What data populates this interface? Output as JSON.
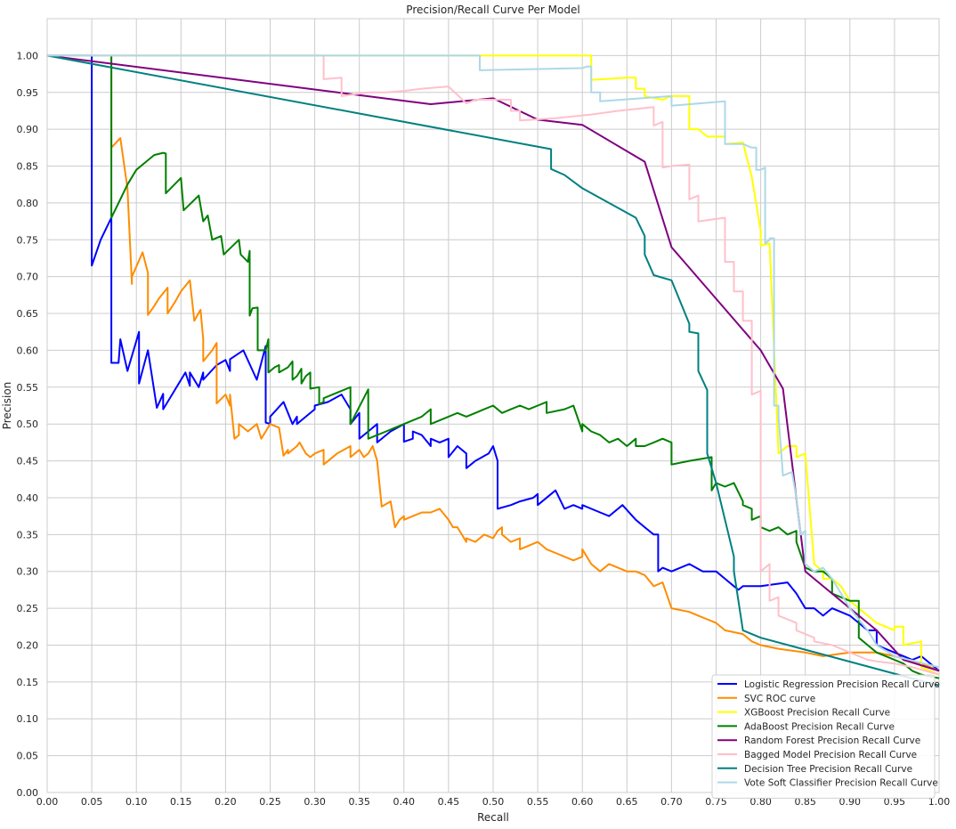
{
  "chart_data": {
    "type": "line",
    "title": "Precision/Recall Curve Per Model",
    "xlabel": "Recall",
    "ylabel": "Precision",
    "xlim": [
      0,
      1
    ],
    "ylim": [
      0,
      1.05
    ],
    "grid": true,
    "legend_position": "lower-right",
    "x_ticks": [
      "0.00",
      "0.05",
      "0.10",
      "0.15",
      "0.20",
      "0.25",
      "0.30",
      "0.35",
      "0.40",
      "0.45",
      "0.50",
      "0.55",
      "0.60",
      "0.65",
      "0.70",
      "0.75",
      "0.80",
      "0.85",
      "0.90",
      "0.95",
      "1.00"
    ],
    "y_ticks": [
      "0.00",
      "0.05",
      "0.10",
      "0.15",
      "0.20",
      "0.25",
      "0.30",
      "0.35",
      "0.40",
      "0.45",
      "0.50",
      "0.55",
      "0.60",
      "0.65",
      "0.70",
      "0.75",
      "0.80",
      "0.85",
      "0.90",
      "0.95",
      "1.00"
    ],
    "series": [
      {
        "name": "Logistic Regression Precision Recall Curve",
        "color": "#0000ff",
        "x": [
          0.0,
          0.05,
          0.05,
          0.06,
          0.072,
          0.072,
          0.08,
          0.082,
          0.09,
          0.103,
          0.103,
          0.113,
          0.123,
          0.123,
          0.13,
          0.13,
          0.14,
          0.155,
          0.16,
          0.16,
          0.17,
          0.175,
          0.175,
          0.19,
          0.2,
          0.205,
          0.205,
          0.22,
          0.235,
          0.245,
          0.245,
          0.25,
          0.25,
          0.265,
          0.275,
          0.28,
          0.28,
          0.29,
          0.3,
          0.3,
          0.315,
          0.33,
          0.34,
          0.34,
          0.35,
          0.35,
          0.36,
          0.37,
          0.37,
          0.385,
          0.4,
          0.4,
          0.41,
          0.41,
          0.42,
          0.43,
          0.43,
          0.44,
          0.45,
          0.45,
          0.46,
          0.47,
          0.47,
          0.48,
          0.495,
          0.5,
          0.505,
          0.505,
          0.52,
          0.53,
          0.545,
          0.55,
          0.55,
          0.57,
          0.58,
          0.59,
          0.6,
          0.6,
          0.62,
          0.63,
          0.645,
          0.66,
          0.67,
          0.68,
          0.685,
          0.685,
          0.69,
          0.7,
          0.72,
          0.735,
          0.75,
          0.76,
          0.77,
          0.775,
          0.78,
          0.8,
          0.83,
          0.84,
          0.85,
          0.86,
          0.87,
          0.88,
          0.9,
          0.92,
          0.93,
          0.93,
          0.95,
          0.97,
          0.98,
          1.0
        ],
        "y": [
          1.0,
          1.0,
          0.715,
          0.75,
          0.78,
          0.583,
          0.583,
          0.615,
          0.572,
          0.625,
          0.555,
          0.6,
          0.522,
          0.522,
          0.541,
          0.52,
          0.54,
          0.57,
          0.552,
          0.57,
          0.55,
          0.57,
          0.56,
          0.58,
          0.587,
          0.572,
          0.588,
          0.6,
          0.56,
          0.606,
          0.502,
          0.5,
          0.51,
          0.53,
          0.5,
          0.51,
          0.5,
          0.51,
          0.52,
          0.525,
          0.53,
          0.54,
          0.52,
          0.5,
          0.515,
          0.48,
          0.49,
          0.5,
          0.475,
          0.49,
          0.5,
          0.476,
          0.48,
          0.49,
          0.485,
          0.47,
          0.48,
          0.475,
          0.48,
          0.455,
          0.47,
          0.46,
          0.44,
          0.45,
          0.46,
          0.47,
          0.45,
          0.385,
          0.39,
          0.395,
          0.4,
          0.405,
          0.39,
          0.41,
          0.385,
          0.39,
          0.385,
          0.39,
          0.38,
          0.375,
          0.39,
          0.37,
          0.36,
          0.35,
          0.35,
          0.3,
          0.305,
          0.3,
          0.31,
          0.3,
          0.3,
          0.29,
          0.28,
          0.275,
          0.28,
          0.28,
          0.285,
          0.27,
          0.25,
          0.25,
          0.24,
          0.25,
          0.24,
          0.22,
          0.22,
          0.2,
          0.19,
          0.18,
          0.185,
          0.165
        ]
      },
      {
        "name": "SVC ROC curve",
        "color": "#ff8c00",
        "x": [
          0.072,
          0.072,
          0.082,
          0.09,
          0.095,
          0.095,
          0.107,
          0.113,
          0.113,
          0.12,
          0.125,
          0.135,
          0.135,
          0.143,
          0.15,
          0.16,
          0.165,
          0.165,
          0.172,
          0.175,
          0.175,
          0.185,
          0.19,
          0.19,
          0.2,
          0.205,
          0.205,
          0.21,
          0.215,
          0.215,
          0.225,
          0.235,
          0.24,
          0.245,
          0.25,
          0.26,
          0.265,
          0.27,
          0.27,
          0.28,
          0.283,
          0.29,
          0.295,
          0.3,
          0.31,
          0.31,
          0.325,
          0.34,
          0.34,
          0.35,
          0.355,
          0.36,
          0.365,
          0.37,
          0.375,
          0.385,
          0.39,
          0.395,
          0.4,
          0.4,
          0.41,
          0.42,
          0.43,
          0.44,
          0.45,
          0.455,
          0.46,
          0.47,
          0.47,
          0.48,
          0.49,
          0.5,
          0.505,
          0.51,
          0.51,
          0.52,
          0.53,
          0.53,
          0.55,
          0.56,
          0.57,
          0.58,
          0.59,
          0.6,
          0.6,
          0.61,
          0.62,
          0.63,
          0.64,
          0.65,
          0.66,
          0.67,
          0.68,
          0.69,
          0.7,
          0.72,
          0.73,
          0.74,
          0.75,
          0.76,
          0.78,
          0.79,
          0.8,
          0.82,
          0.85,
          0.87,
          0.9,
          0.93,
          0.95,
          0.98,
          1.0
        ],
        "y": [
          1.0,
          0.875,
          0.888,
          0.82,
          0.69,
          0.7,
          0.733,
          0.705,
          0.648,
          0.66,
          0.67,
          0.685,
          0.65,
          0.665,
          0.68,
          0.695,
          0.64,
          0.64,
          0.655,
          0.615,
          0.585,
          0.6,
          0.61,
          0.528,
          0.54,
          0.525,
          0.54,
          0.48,
          0.485,
          0.5,
          0.49,
          0.5,
          0.48,
          0.49,
          0.5,
          0.495,
          0.457,
          0.465,
          0.46,
          0.47,
          0.475,
          0.46,
          0.455,
          0.46,
          0.465,
          0.445,
          0.46,
          0.47,
          0.455,
          0.465,
          0.455,
          0.46,
          0.47,
          0.45,
          0.388,
          0.395,
          0.36,
          0.37,
          0.375,
          0.37,
          0.375,
          0.38,
          0.38,
          0.385,
          0.37,
          0.36,
          0.36,
          0.34,
          0.345,
          0.34,
          0.35,
          0.345,
          0.355,
          0.36,
          0.35,
          0.34,
          0.345,
          0.33,
          0.34,
          0.33,
          0.325,
          0.32,
          0.315,
          0.32,
          0.33,
          0.31,
          0.3,
          0.31,
          0.305,
          0.3,
          0.3,
          0.295,
          0.28,
          0.285,
          0.25,
          0.245,
          0.24,
          0.235,
          0.23,
          0.22,
          0.215,
          0.205,
          0.2,
          0.195,
          0.19,
          0.185,
          0.19,
          0.19,
          0.185,
          0.175,
          0.165
        ]
      },
      {
        "name": "XGBoost Precision Recall Curve",
        "color": "#ffff00",
        "x": [
          0.0,
          0.6,
          0.61,
          0.61,
          0.65,
          0.66,
          0.66,
          0.67,
          0.67,
          0.69,
          0.7,
          0.72,
          0.72,
          0.73,
          0.74,
          0.74,
          0.76,
          0.76,
          0.78,
          0.79,
          0.79,
          0.8,
          0.8,
          0.81,
          0.82,
          0.83,
          0.84,
          0.84,
          0.85,
          0.86,
          0.87,
          0.87,
          0.88,
          0.89,
          0.9,
          0.91,
          0.92,
          0.93,
          0.95,
          0.95,
          0.96,
          0.96,
          0.98,
          0.98,
          1.0
        ],
        "y": [
          1.0,
          1.0,
          1.0,
          0.967,
          0.97,
          0.97,
          0.955,
          0.955,
          0.945,
          0.94,
          0.945,
          0.945,
          0.9,
          0.9,
          0.89,
          0.89,
          0.89,
          0.88,
          0.882,
          0.835,
          0.835,
          0.762,
          0.742,
          0.745,
          0.46,
          0.47,
          0.47,
          0.455,
          0.46,
          0.31,
          0.3,
          0.29,
          0.29,
          0.28,
          0.26,
          0.25,
          0.24,
          0.23,
          0.22,
          0.225,
          0.225,
          0.2,
          0.205,
          0.17,
          0.16
        ]
      },
      {
        "name": "AdaBoost Precision Recall Curve",
        "color": "#008000",
        "x": [
          0.072,
          0.072,
          0.08,
          0.09,
          0.1,
          0.11,
          0.12,
          0.13,
          0.133,
          0.133,
          0.15,
          0.153,
          0.153,
          0.17,
          0.175,
          0.175,
          0.18,
          0.185,
          0.185,
          0.195,
          0.198,
          0.198,
          0.215,
          0.217,
          0.217,
          0.225,
          0.227,
          0.227,
          0.23,
          0.236,
          0.236,
          0.245,
          0.248,
          0.248,
          0.255,
          0.26,
          0.26,
          0.27,
          0.275,
          0.275,
          0.28,
          0.285,
          0.285,
          0.29,
          0.295,
          0.295,
          0.305,
          0.305,
          0.31,
          0.31,
          0.34,
          0.34,
          0.36,
          0.36,
          0.37,
          0.38,
          0.39,
          0.4,
          0.41,
          0.42,
          0.43,
          0.43,
          0.44,
          0.45,
          0.46,
          0.47,
          0.48,
          0.49,
          0.5,
          0.51,
          0.52,
          0.53,
          0.54,
          0.55,
          0.56,
          0.56,
          0.58,
          0.59,
          0.6,
          0.6,
          0.61,
          0.62,
          0.63,
          0.64,
          0.65,
          0.66,
          0.66,
          0.67,
          0.68,
          0.69,
          0.7,
          0.7,
          0.72,
          0.745,
          0.745,
          0.75,
          0.76,
          0.77,
          0.78,
          0.78,
          0.79,
          0.79,
          0.8,
          0.8,
          0.81,
          0.82,
          0.83,
          0.84,
          0.84,
          0.85,
          0.86,
          0.87,
          0.88,
          0.88,
          0.89,
          0.9,
          0.91,
          0.91,
          0.92,
          0.93,
          0.95,
          0.96,
          0.97,
          0.98,
          1.0
        ],
        "y": [
          1.0,
          0.78,
          0.8,
          0.825,
          0.845,
          0.855,
          0.865,
          0.868,
          0.867,
          0.813,
          0.834,
          0.79,
          0.79,
          0.81,
          0.775,
          0.775,
          0.783,
          0.75,
          0.75,
          0.755,
          0.73,
          0.73,
          0.75,
          0.73,
          0.73,
          0.72,
          0.735,
          0.647,
          0.657,
          0.658,
          0.6,
          0.6,
          0.615,
          0.57,
          0.577,
          0.58,
          0.57,
          0.577,
          0.585,
          0.56,
          0.565,
          0.575,
          0.555,
          0.565,
          0.57,
          0.548,
          0.55,
          0.527,
          0.53,
          0.535,
          0.55,
          0.5,
          0.547,
          0.48,
          0.485,
          0.49,
          0.495,
          0.5,
          0.505,
          0.51,
          0.52,
          0.5,
          0.505,
          0.51,
          0.515,
          0.51,
          0.515,
          0.52,
          0.525,
          0.515,
          0.52,
          0.525,
          0.52,
          0.525,
          0.53,
          0.515,
          0.52,
          0.525,
          0.49,
          0.5,
          0.49,
          0.485,
          0.475,
          0.48,
          0.47,
          0.48,
          0.47,
          0.47,
          0.475,
          0.48,
          0.475,
          0.445,
          0.45,
          0.455,
          0.41,
          0.42,
          0.415,
          0.42,
          0.395,
          0.39,
          0.385,
          0.37,
          0.375,
          0.36,
          0.355,
          0.36,
          0.35,
          0.355,
          0.34,
          0.305,
          0.3,
          0.3,
          0.29,
          0.27,
          0.265,
          0.26,
          0.26,
          0.21,
          0.2,
          0.19,
          0.18,
          0.175,
          0.165,
          0.16,
          0.155
        ]
      },
      {
        "name": "Random Forest Precision Recall Curve",
        "color": "#800080",
        "x": [
          0.0,
          0.43,
          0.5,
          0.55,
          0.6,
          0.67,
          0.7,
          0.75,
          0.8,
          0.825,
          0.85,
          0.86,
          0.9,
          0.93,
          0.96,
          1.0
        ],
        "y": [
          1.0,
          0.934,
          0.942,
          0.913,
          0.906,
          0.856,
          0.74,
          0.67,
          0.6,
          0.548,
          0.3,
          0.29,
          0.25,
          0.22,
          0.18,
          0.165
        ]
      },
      {
        "name": "Bagged Model Precision Recall Curve",
        "color": "#ffc0cb",
        "x": [
          0.0,
          0.31,
          0.31,
          0.33,
          0.33,
          0.36,
          0.38,
          0.4,
          0.42,
          0.45,
          0.47,
          0.48,
          0.5,
          0.52,
          0.52,
          0.53,
          0.53,
          0.57,
          0.61,
          0.64,
          0.68,
          0.68,
          0.69,
          0.69,
          0.7,
          0.72,
          0.72,
          0.73,
          0.73,
          0.76,
          0.76,
          0.77,
          0.77,
          0.78,
          0.78,
          0.79,
          0.79,
          0.8,
          0.8,
          0.81,
          0.81,
          0.82,
          0.82,
          0.83,
          0.84,
          0.84,
          0.85,
          0.86,
          0.86,
          0.88,
          0.89,
          0.9,
          0.91,
          0.92,
          0.93,
          0.95,
          0.97,
          1.0
        ],
        "y": [
          1.0,
          1.0,
          0.968,
          0.97,
          0.945,
          0.95,
          0.95,
          0.952,
          0.955,
          0.958,
          0.935,
          0.94,
          0.94,
          0.94,
          0.925,
          0.925,
          0.912,
          0.915,
          0.92,
          0.925,
          0.93,
          0.905,
          0.91,
          0.848,
          0.85,
          0.852,
          0.805,
          0.81,
          0.775,
          0.78,
          0.72,
          0.72,
          0.68,
          0.68,
          0.64,
          0.64,
          0.54,
          0.545,
          0.3,
          0.31,
          0.26,
          0.265,
          0.24,
          0.235,
          0.23,
          0.22,
          0.215,
          0.21,
          0.205,
          0.2,
          0.195,
          0.19,
          0.185,
          0.18,
          0.178,
          0.175,
          0.17,
          0.16
        ]
      },
      {
        "name": "Decision Tree Precision Recall Curve",
        "color": "#008080",
        "x": [
          0.0,
          0.565,
          0.565,
          0.58,
          0.6,
          0.66,
          0.67,
          0.67,
          0.68,
          0.7,
          0.72,
          0.72,
          0.73,
          0.73,
          0.74,
          0.74,
          0.75,
          0.77,
          0.77,
          0.78,
          0.8,
          1.0
        ],
        "y": [
          1.0,
          0.873,
          0.846,
          0.838,
          0.82,
          0.78,
          0.755,
          0.73,
          0.702,
          0.695,
          0.636,
          0.625,
          0.623,
          0.572,
          0.546,
          0.46,
          0.42,
          0.32,
          0.3,
          0.22,
          0.21,
          0.145
        ]
      },
      {
        "name": "Vote Soft Classifier Precision Recall Curve",
        "color": "#add8e6",
        "x": [
          0.0,
          0.485,
          0.485,
          0.6,
          0.605,
          0.61,
          0.61,
          0.62,
          0.62,
          0.7,
          0.7,
          0.76,
          0.76,
          0.78,
          0.79,
          0.79,
          0.795,
          0.795,
          0.8,
          0.805,
          0.805,
          0.81,
          0.81,
          0.815,
          0.815,
          0.82,
          0.82,
          0.825,
          0.835,
          0.84,
          0.84,
          0.845,
          0.85,
          0.85,
          0.86,
          0.87,
          0.88,
          0.89,
          0.9,
          0.92,
          0.93,
          0.95,
          1.0
        ],
        "y": [
          1.0,
          1.0,
          0.98,
          0.983,
          0.985,
          0.985,
          0.95,
          0.95,
          0.938,
          0.945,
          0.932,
          0.938,
          0.88,
          0.88,
          0.875,
          0.875,
          0.875,
          0.845,
          0.845,
          0.848,
          0.745,
          0.75,
          0.752,
          0.752,
          0.525,
          0.525,
          0.51,
          0.43,
          0.435,
          0.4,
          0.4,
          0.35,
          0.355,
          0.31,
          0.3,
          0.305,
          0.29,
          0.27,
          0.25,
          0.22,
          0.2,
          0.185,
          0.17
        ]
      }
    ]
  }
}
